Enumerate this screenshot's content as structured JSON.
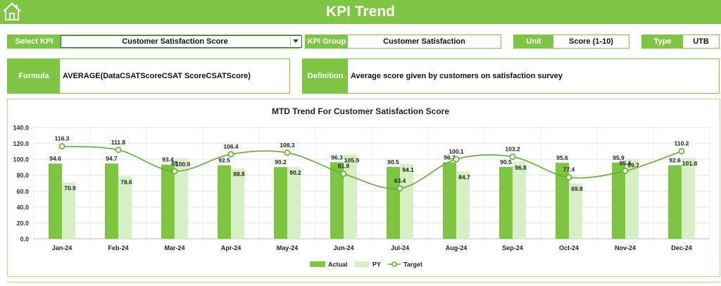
{
  "header": {
    "title": "KPI Trend",
    "home_icon": "home-icon"
  },
  "controls": {
    "select_kpi_label": "Select KPI",
    "select_kpi_value": "Customer Satisfaction Score",
    "kpi_group_label": "KPI Group",
    "kpi_group_value": "Customer Satisfaction",
    "unit_label": "Unit",
    "unit_value": "Score (1-10)",
    "type_label": "Type",
    "type_value": "UTB"
  },
  "info": {
    "formula_label": "Formula",
    "formula_value": "AVERAGE(DataCSATScoreCSAT ScoreCSATScore)",
    "definition_label": "Definition",
    "definition_value": "Average score given by customers on satisfaction survey"
  },
  "colors": {
    "accent": "#7dc542",
    "actual": "#7dc542",
    "py": "#d6efc4",
    "target": "#5fae32"
  },
  "chart_data": {
    "type": "bar",
    "title": "MTD Trend For Customer Satisfaction Score",
    "categories": [
      "Jan-24",
      "Feb-24",
      "Mar-24",
      "Apr-24",
      "May-24",
      "Jun-24",
      "Jul-24",
      "Aug-24",
      "Sep-24",
      "Oct-24",
      "Nov-24",
      "Dec-24"
    ],
    "series": [
      {
        "name": "Actual",
        "kind": "bar",
        "values": [
          94.6,
          94.7,
          93.4,
          92.5,
          90.2,
          96.3,
          90.5,
          96.3,
          90.5,
          95.6,
          95.9,
          92.6
        ]
      },
      {
        "name": "PY",
        "kind": "bar",
        "values": [
          70.9,
          78.6,
          100.9,
          88.8,
          90.2,
          105.9,
          94.1,
          84.7,
          96.8,
          69.8,
          99.7,
          101.8
        ]
      },
      {
        "name": "Target",
        "kind": "line",
        "values": [
          116.3,
          111.8,
          85.0,
          106.4,
          108.3,
          81.8,
          63.4,
          100.1,
          103.2,
          77.4,
          85.4,
          110.2
        ]
      }
    ],
    "ylim": [
      0,
      140
    ],
    "yticks": [
      "0.0",
      "20.0",
      "40.0",
      "60.0",
      "80.0",
      "100.0",
      "120.0",
      "140.0"
    ],
    "grid": true,
    "legend": "bottom",
    "xlabel": "",
    "ylabel": ""
  }
}
